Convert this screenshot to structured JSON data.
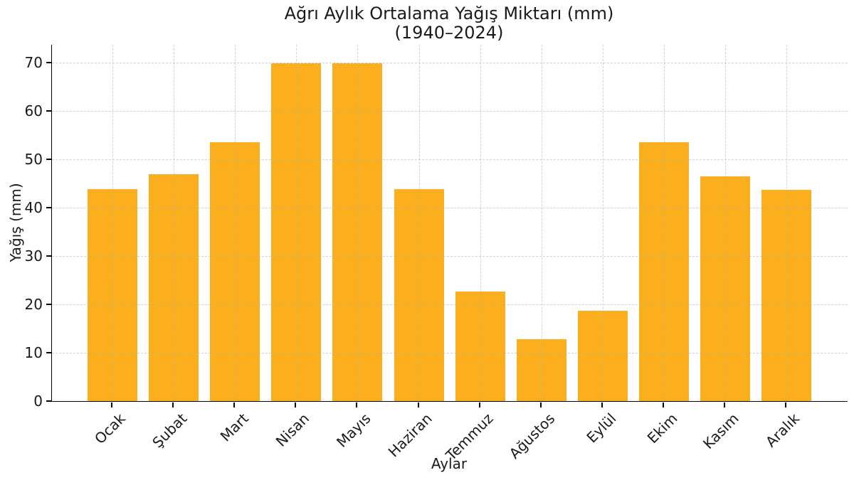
{
  "chart_data": {
    "type": "bar",
    "title": "Ağrı Aylık Ortalama Yağış Miktarı (mm)",
    "subtitle": "(1940–2024)",
    "xlabel": "Aylar",
    "ylabel": "Yağış (mm)",
    "categories": [
      "Ocak",
      "Şubat",
      "Mart",
      "Nisan",
      "Mayıs",
      "Haziran",
      "Temmuz",
      "Ağustos",
      "Eylül",
      "Ekim",
      "Kasım",
      "Aralık"
    ],
    "values": [
      43.9,
      46.9,
      53.6,
      69.9,
      69.9,
      43.8,
      22.6,
      12.8,
      18.7,
      53.5,
      46.5,
      43.7
    ],
    "yticks": [
      0,
      10,
      20,
      30,
      40,
      50,
      60,
      70
    ],
    "ylim": [
      0,
      73.7
    ],
    "grid": true,
    "grid_style": "dashed",
    "legend": "none",
    "bar_color": "#FCAF1E",
    "axis_color": "#000000",
    "text_color": "#1a1a1a"
  }
}
